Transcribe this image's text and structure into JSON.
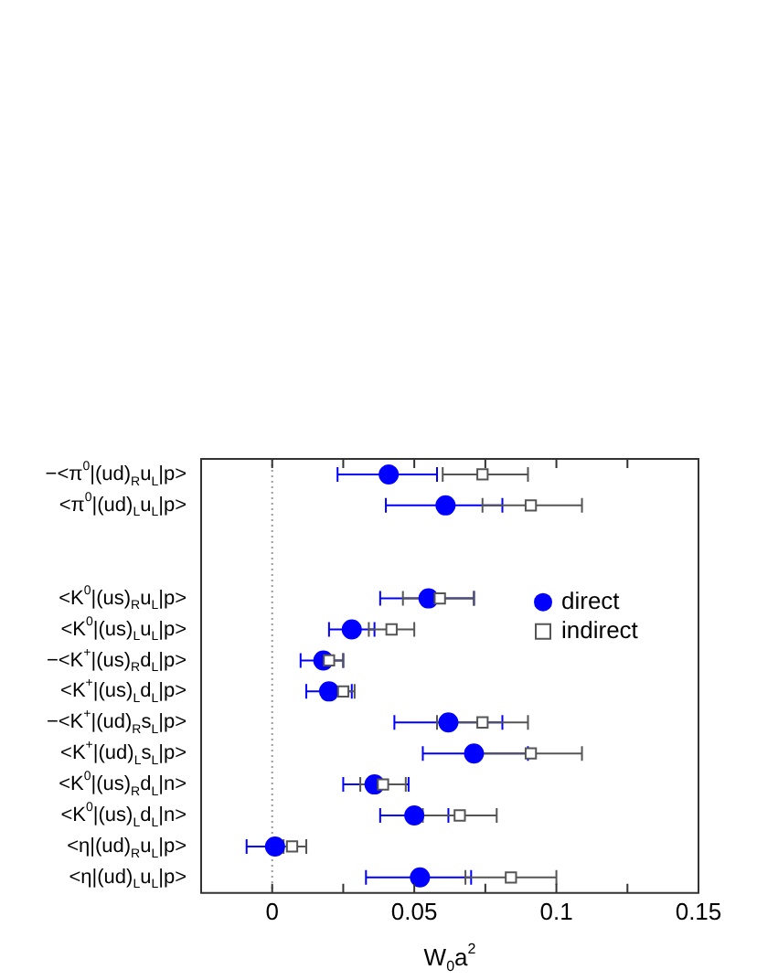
{
  "chart_data": {
    "type": "scatter",
    "xlabel": "W$_{0}$a$^{2}$",
    "categories": [
      "−<π$^{0}$|(ud)$_{R}$u$_{L}$|p>",
      "<π$^{0}$|(ud)$_{L}$u$_{L}$|p>",
      null,
      null,
      "<K$^{0}$|(us)$_{R}$u$_{L}$|p>",
      "<K$^{0}$|(us)$_{L}$u$_{L}$|p>",
      "−<K$^{+}$|(us)$_{R}$d$_{L}$|p>",
      "<K$^{+}$|(us)$_{L}$d$_{L}$|p>",
      "−<K$^{+}$|(ud)$_{R}$s$_{L}$|p>",
      "<K$^{+}$|(ud)$_{L}$s$_{L}$|p>",
      "<K$^{0}$|(us)$_{R}$d$_{L}$|n>",
      "<K$^{0}$|(us)$_{L}$d$_{L}$|n>",
      "<η|(ud)$_{R}$u$_{L}$|p>",
      "<η|(ud)$_{L}$u$_{L}$|p>"
    ],
    "orientation": "horizontal",
    "series": [
      {
        "name": "direct",
        "color": "#0000ff",
        "marker": "circle",
        "values": [
          0.041,
          0.061,
          null,
          null,
          0.055,
          0.028,
          0.018,
          0.02,
          0.062,
          0.071,
          0.036,
          0.05,
          0.001,
          0.052
        ],
        "errors": [
          [
            0.023,
            0.058
          ],
          [
            0.04,
            0.081
          ],
          null,
          null,
          [
            0.038,
            0.071
          ],
          [
            0.02,
            0.036
          ],
          [
            0.01,
            0.025
          ],
          [
            0.012,
            0.028
          ],
          [
            0.043,
            0.081
          ],
          [
            0.053,
            0.09
          ],
          [
            0.025,
            0.048
          ],
          [
            0.038,
            0.062
          ],
          [
            -0.009,
            0.012
          ],
          [
            0.033,
            0.07
          ]
        ]
      },
      {
        "name": "indirect",
        "color": "#555555",
        "marker": "square",
        "values": [
          0.074,
          0.091,
          null,
          null,
          0.059,
          0.042,
          0.02,
          0.025,
          0.074,
          0.091,
          0.039,
          0.066,
          0.007,
          0.084
        ],
        "errors": [
          [
            0.06,
            0.09
          ],
          [
            0.074,
            0.109
          ],
          null,
          null,
          [
            0.046,
            0.071
          ],
          [
            0.034,
            0.05
          ],
          [
            0.016,
            0.025
          ],
          [
            0.022,
            0.029
          ],
          [
            0.058,
            0.09
          ],
          [
            0.073,
            0.109
          ],
          [
            0.031,
            0.047
          ],
          [
            0.053,
            0.079
          ],
          [
            0.004,
            0.012
          ],
          [
            0.068,
            0.1
          ]
        ]
      }
    ],
    "xlim": [
      -0.025,
      0.15
    ],
    "xticks": [
      0,
      {
        "value": 0.025,
        "label": null
      },
      0.05,
      {
        "value": 0.075,
        "label": null
      },
      0.1,
      {
        "value": 0.125,
        "label": null
      },
      0.15
    ],
    "ref_lines": [
      {
        "axis": "x",
        "value": 0,
        "color": "#999999",
        "line_style": "dotted"
      }
    ],
    "legend": "right",
    "grid": false
  }
}
